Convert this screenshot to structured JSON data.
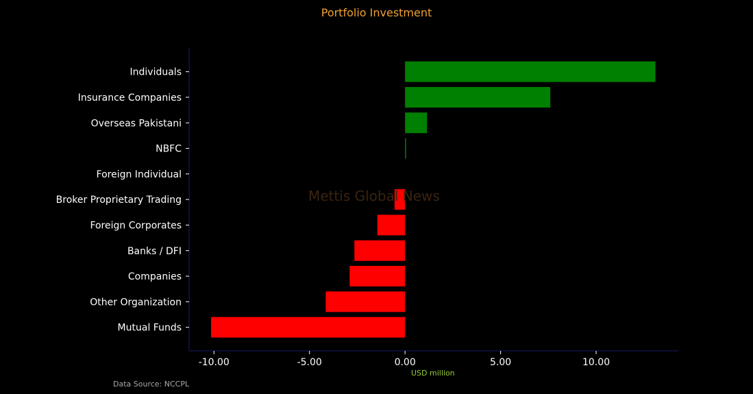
{
  "chart_data": {
    "type": "bar",
    "orientation": "horizontal",
    "title": "Portfolio Investment",
    "xlabel": "USD million",
    "ylabel": "",
    "categories": [
      "Individuals",
      "Insurance Companies",
      "Overseas Pakistani",
      "NBFC",
      "Foreign Individual",
      "Broker Proprietary Trading",
      "Foreign Corporates ",
      "Banks / DFI",
      "Companies",
      "Other Organization",
      "Mutual Funds"
    ],
    "values": [
      13.1,
      7.6,
      1.15,
      0.05,
      0.0,
      -0.55,
      -1.45,
      -2.65,
      -2.9,
      -4.15,
      -10.15
    ],
    "xlim": [
      -11.3,
      14.3
    ],
    "xticks": [
      -10,
      -5,
      0,
      5,
      10
    ],
    "xtick_labels": [
      "-10.00",
      "-5.00",
      "0.00",
      "5.00",
      "10.00"
    ],
    "positive_color": "#008000",
    "negative_color": "#ff0000",
    "grid": false,
    "legend": "none"
  },
  "footer": {
    "source": "Data Source: NCCPL",
    "watermark": "Mettis Global News"
  }
}
